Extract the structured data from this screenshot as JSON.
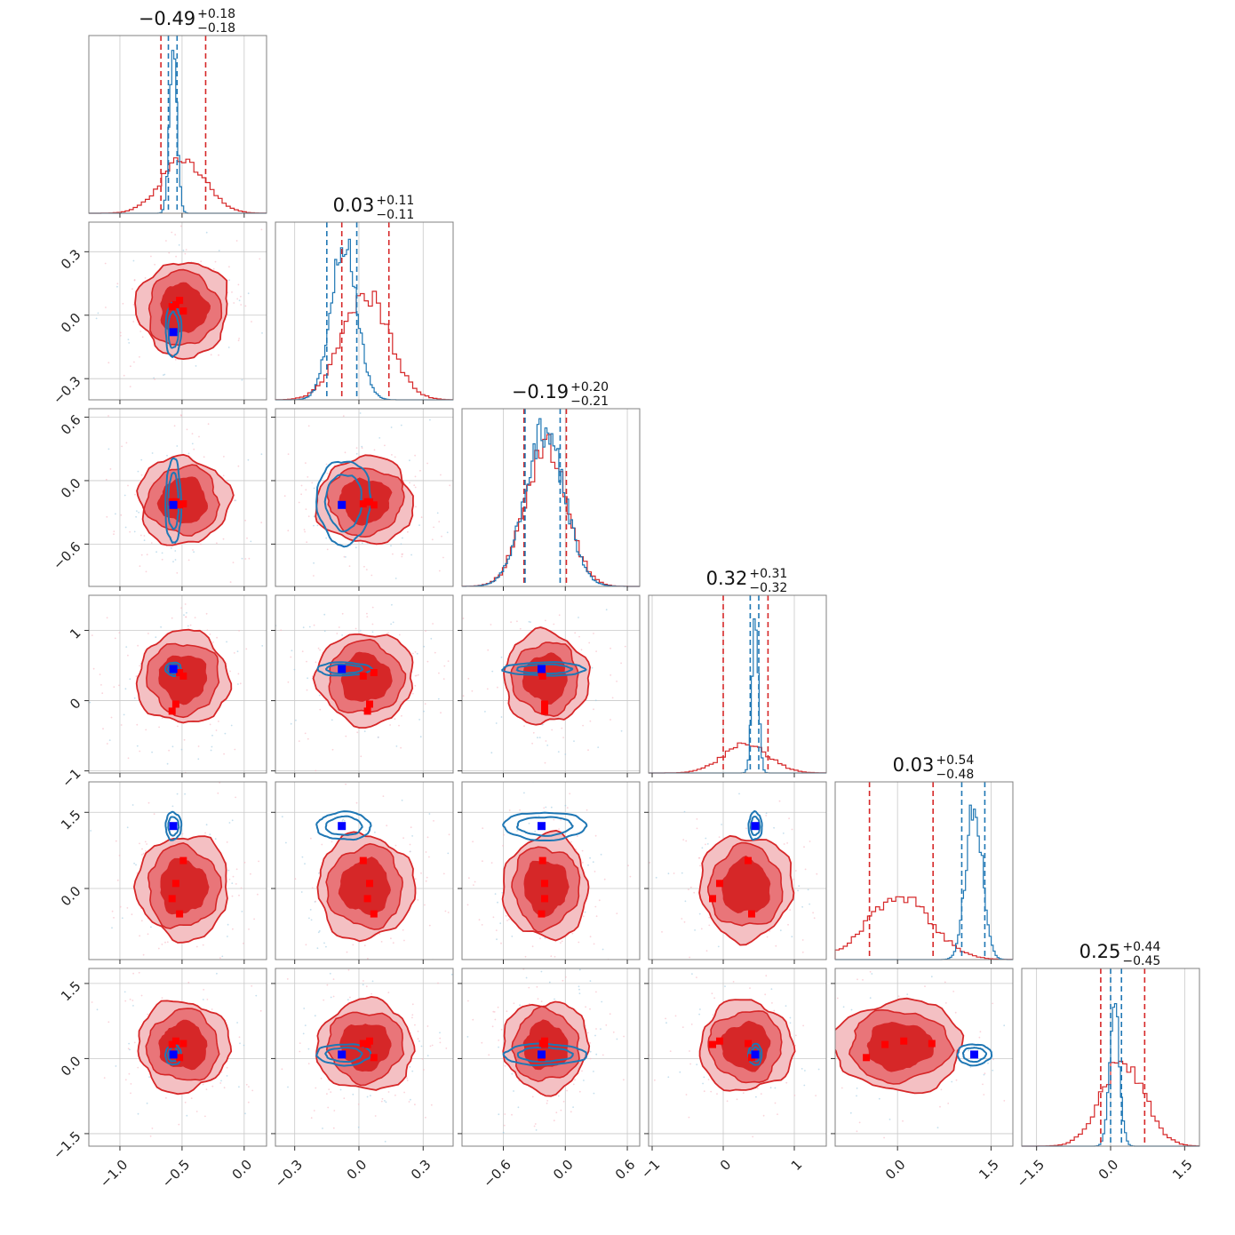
{
  "chart_data": {
    "type": "corner",
    "colors": {
      "red": "#d62728",
      "red_mid": "#e97579",
      "red_light": "#f4c0c3",
      "blue": "#1f77b4",
      "marker_blue": "#0000ff",
      "marker_red": "#ff0000"
    },
    "grid": true,
    "params": [
      {
        "title": {
          "value": "−0.49",
          "plus": "+0.18",
          "minus": "−0.18"
        },
        "range": [
          -1.25,
          0.18
        ],
        "ticks": [
          -1.0,
          -0.5,
          0.0
        ],
        "tick_labels": [
          "−1.0",
          "−0.5",
          "0.0"
        ],
        "red_hist": {
          "mean": -0.49,
          "sd": 0.18,
          "height": 0.3
        },
        "blue_hist": {
          "mean": -0.57,
          "sd": 0.03,
          "height": 0.97
        },
        "red_quantiles": [
          -0.67,
          -0.31
        ],
        "blue_quantiles": [
          -0.61,
          -0.54
        ],
        "truth": -0.57,
        "red_points": [
          -0.49,
          -0.55,
          -0.58,
          -0.52
        ]
      },
      {
        "title": {
          "value": "0.03",
          "plus": "+0.11",
          "minus": "−0.11"
        },
        "range": [
          -0.39,
          0.44
        ],
        "ticks": [
          -0.3,
          0.0,
          0.3
        ],
        "tick_labels": [
          "−0.3",
          "0.0",
          "0.3"
        ],
        "red_hist": {
          "mean": 0.03,
          "sd": 0.11,
          "height": 0.6
        },
        "blue_hist": {
          "mean": -0.07,
          "sd": 0.06,
          "height": 0.9
        },
        "red_quantiles": [
          -0.08,
          0.14
        ],
        "blue_quantiles": [
          -0.15,
          -0.01
        ],
        "truth": -0.08,
        "red_points": [
          0.02,
          0.05,
          0.04,
          0.07
        ]
      },
      {
        "title": {
          "value": "−0.19",
          "plus": "+0.20",
          "minus": "−0.21"
        },
        "range": [
          -1.0,
          0.72
        ],
        "ticks": [
          -0.6,
          0.0,
          0.6
        ],
        "tick_labels": [
          "−0.6",
          "0.0",
          "0.6"
        ],
        "red_hist": {
          "mean": -0.19,
          "sd": 0.2,
          "height": 0.8
        },
        "blue_hist": {
          "mean": -0.2,
          "sd": 0.19,
          "height": 0.88
        },
        "red_quantiles": [
          -0.4,
          0.01
        ],
        "blue_quantiles": [
          -0.39,
          -0.05
        ],
        "truth": -0.23,
        "red_points": [
          -0.22,
          -0.2,
          -0.2,
          -0.23
        ]
      },
      {
        "title": {
          "value": "0.32",
          "plus": "+0.31",
          "minus": "−0.32"
        },
        "range": [
          -1.05,
          1.45
        ],
        "ticks": [
          -1,
          0,
          1
        ],
        "tick_labels": [
          "−1",
          "0",
          "1"
        ],
        "red_hist": {
          "mean": 0.32,
          "sd": 0.32,
          "height": 0.16
        },
        "blue_hist": {
          "mean": 0.45,
          "sd": 0.045,
          "height": 0.82
        },
        "red_quantiles": [
          0.0,
          0.63
        ],
        "blue_quantiles": [
          0.38,
          0.5
        ],
        "truth": 0.45,
        "red_points": [
          0.35,
          -0.05,
          -0.15,
          0.4
        ]
      },
      {
        "title": {
          "value": "0.03",
          "plus": "+0.54",
          "minus": "−0.48"
        },
        "range": [
          -1.0,
          1.85
        ],
        "ticks": [
          0.0,
          1.5
        ],
        "tick_labels": [
          "0.0",
          "1.5"
        ],
        "red_hist": {
          "mean": 0.03,
          "sd": 0.5,
          "height": 0.36
        },
        "blue_hist": {
          "mean": 1.23,
          "sd": 0.13,
          "height": 0.88
        },
        "red_quantiles": [
          -0.45,
          0.57
        ],
        "blue_quantiles": [
          1.03,
          1.4
        ],
        "truth": 1.23,
        "red_points": [
          0.55,
          0.1,
          -0.2,
          -0.5
        ]
      },
      {
        "title": {
          "value": "0.25",
          "plus": "+0.44",
          "minus": "−0.45"
        },
        "range": [
          -1.8,
          1.8
        ],
        "ticks": [
          -1.5,
          0.0,
          1.5
        ],
        "tick_labels": [
          "−1.5",
          "0.0",
          "1.5"
        ],
        "red_hist": {
          "mean": 0.25,
          "sd": 0.44,
          "height": 0.48
        },
        "blue_hist": {
          "mean": 0.08,
          "sd": 0.1,
          "height": 0.8
        },
        "red_quantiles": [
          -0.2,
          0.69
        ],
        "blue_quantiles": [
          0.0,
          0.22
        ],
        "truth": 0.08,
        "red_points": [
          0.3,
          0.35,
          0.28,
          0.02
        ]
      }
    ],
    "y_axis_rows": [
      {
        "row": 1,
        "ticks": [
          -0.3,
          0.0,
          0.3
        ],
        "tick_labels": [
          "−0.3",
          "0.0",
          "0.3"
        ],
        "range": [
          -0.4,
          0.44
        ]
      },
      {
        "row": 2,
        "ticks": [
          -0.6,
          0.0,
          0.6
        ],
        "tick_labels": [
          "−0.6",
          "0.0",
          "0.6"
        ],
        "range": [
          -1.0,
          0.68
        ]
      },
      {
        "row": 3,
        "ticks": [
          -1,
          0,
          1
        ],
        "tick_labels": [
          "−1",
          "0",
          "1"
        ],
        "range": [
          -1.03,
          1.5
        ]
      },
      {
        "row": 4,
        "ticks": [
          1.5,
          0.0
        ],
        "tick_labels": [
          "1.5",
          "0.0"
        ],
        "range": [
          -1.4,
          2.1
        ]
      },
      {
        "row": 5,
        "ticks": [
          -1.5,
          0.0,
          1.5
        ],
        "tick_labels": [
          "−1.5",
          "0.0",
          "1.5"
        ],
        "range": [
          -1.75,
          1.8
        ]
      }
    ]
  }
}
